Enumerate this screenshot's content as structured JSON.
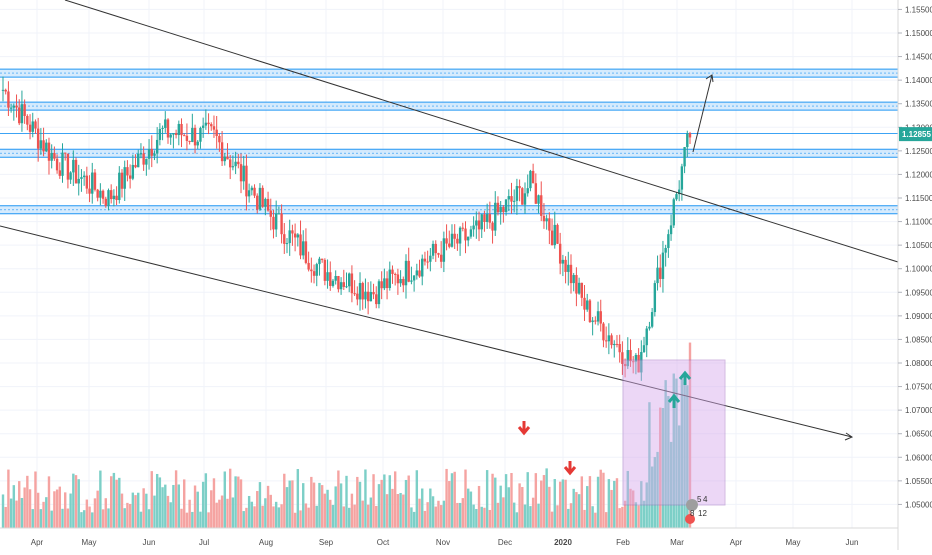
{
  "chart_data": {
    "type": "candlestick",
    "title": "",
    "instrument_hint": "",
    "y_axis": {
      "min": 1.045,
      "max": 1.157,
      "ticks": [
        "1.05000",
        "1.05500",
        "1.06000",
        "1.06500",
        "1.07000",
        "1.07500",
        "1.08000",
        "1.08500",
        "1.09000",
        "1.09500",
        "1.10000",
        "1.10500",
        "1.11000",
        "1.11500",
        "1.12000",
        "1.12500",
        "1.13000",
        "1.13500",
        "1.14000",
        "1.14500",
        "1.15000",
        "1.15500"
      ],
      "last_price": "1.12855"
    },
    "x_axis": {
      "labels": [
        "Apr",
        "May",
        "Jun",
        "Jul",
        "Aug",
        "Sep",
        "Oct",
        "Nov",
        "Dec",
        "2020",
        "Feb",
        "Mar",
        "Apr",
        "May",
        "Jun"
      ]
    },
    "approx_close_path": [
      {
        "date": "Mar",
        "close": 1.138
      },
      {
        "date": "Apr",
        "close": 1.123
      },
      {
        "date": "May",
        "close": 1.115
      },
      {
        "date": "Jun",
        "close": 1.129
      },
      {
        "date": "Jul",
        "close": 1.128
      },
      {
        "date": "Aug",
        "close": 1.112
      },
      {
        "date": "Sep",
        "close": 1.1
      },
      {
        "date": "Oct",
        "close": 1.095
      },
      {
        "date": "Nov",
        "close": 1.102
      },
      {
        "date": "Dec",
        "close": 1.108
      },
      {
        "date": "2020",
        "close": 1.118
      },
      {
        "date": "Feb",
        "close": 1.092
      },
      {
        "date": "Feb-end",
        "close": 1.079
      },
      {
        "date": "Mar",
        "close": 1.12855
      }
    ],
    "horizontal_levels": [
      1.1415,
      1.1345,
      1.1245,
      1.1125
    ],
    "annotations": {
      "volume_markers": [
        "down-arrow",
        "down-arrow"
      ],
      "breakout_markers": [
        "up-arrow",
        "up-arrow"
      ],
      "target_arrow": "up-right",
      "highlight_box": "volume-spike-zone",
      "volume_badge_text": [
        "5",
        "4",
        "8",
        "12"
      ]
    },
    "colors": {
      "up": "#26a69a",
      "down": "#ef5350",
      "level_line": "#2196f3",
      "level_fill": "#bbdefb",
      "trendline": "#333333",
      "highlight_fill": "#d7a8ec",
      "price_label_bg": "#26a69a",
      "vol_up": "#7ccfc7",
      "vol_down": "#f5a3a1"
    },
    "grid": true,
    "legend": "none"
  }
}
